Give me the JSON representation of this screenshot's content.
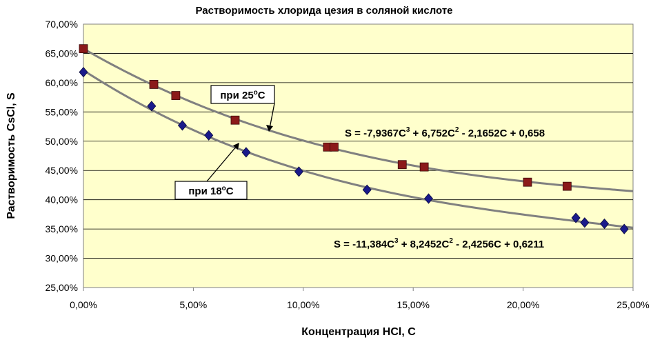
{
  "chart_data": {
    "type": "scatter",
    "title": "Растворимость хлорида цезия в соляной кислоте",
    "xlabel": "Концентрация HCl, C",
    "ylabel": "Растворимость CsCl, S",
    "xlim": [
      0,
      0.25
    ],
    "ylim": [
      0.25,
      0.7
    ],
    "x_ticks": [
      "0,00%",
      "5,00%",
      "10,00%",
      "15,00%",
      "20,00%",
      "25,00%"
    ],
    "y_ticks": [
      "25,00%",
      "30,00%",
      "35,00%",
      "40,00%",
      "45,00%",
      "50,00%",
      "55,00%",
      "60,00%",
      "65,00%",
      "70,00%"
    ],
    "grid": true,
    "plot_background": "#ffffcc",
    "series": [
      {
        "label": "при 25ºC",
        "color": "#8b1a1a",
        "marker": "square",
        "trendline": {
          "type": "polynomial",
          "coefficients": [
            0.658,
            -2.1652,
            6.752,
            -7.9367
          ]
        },
        "x": [
          0.0,
          0.032,
          0.042,
          0.069,
          0.111,
          0.114,
          0.145,
          0.155,
          0.202,
          0.22
        ],
        "y": [
          0.658,
          0.597,
          0.578,
          0.536,
          0.49,
          0.49,
          0.46,
          0.456,
          0.43,
          0.423
        ]
      },
      {
        "label": "при 18ºC",
        "color": "#1a1a8b",
        "marker": "diamond",
        "trendline": {
          "type": "polynomial",
          "coefficients": [
            0.6211,
            -2.4256,
            8.2452,
            -11.384
          ]
        },
        "x": [
          0.0,
          0.031,
          0.045,
          0.057,
          0.074,
          0.098,
          0.129,
          0.157,
          0.224,
          0.228,
          0.237,
          0.246
        ],
        "y": [
          0.618,
          0.56,
          0.527,
          0.51,
          0.481,
          0.448,
          0.417,
          0.402,
          0.369,
          0.361,
          0.359,
          0.35
        ]
      }
    ],
    "annotations": {
      "callout_25": {
        "prefix": "при 25",
        "sup": "o",
        "suffix": "C"
      },
      "callout_18": {
        "prefix": "при 18",
        "sup": "o",
        "suffix": "C"
      },
      "equation_25": {
        "p1": "S = -7,9367C",
        "s1": "3",
        "p2": " + 6,752C",
        "s2": "2",
        "p3": " - 2,1652C + 0,658"
      },
      "equation_18": {
        "p1": "S = -11,384C",
        "s1": "3",
        "p2": " + 8,2452C",
        "s2": "2",
        "p3": " - 2,4256C + 0,6211"
      }
    }
  }
}
